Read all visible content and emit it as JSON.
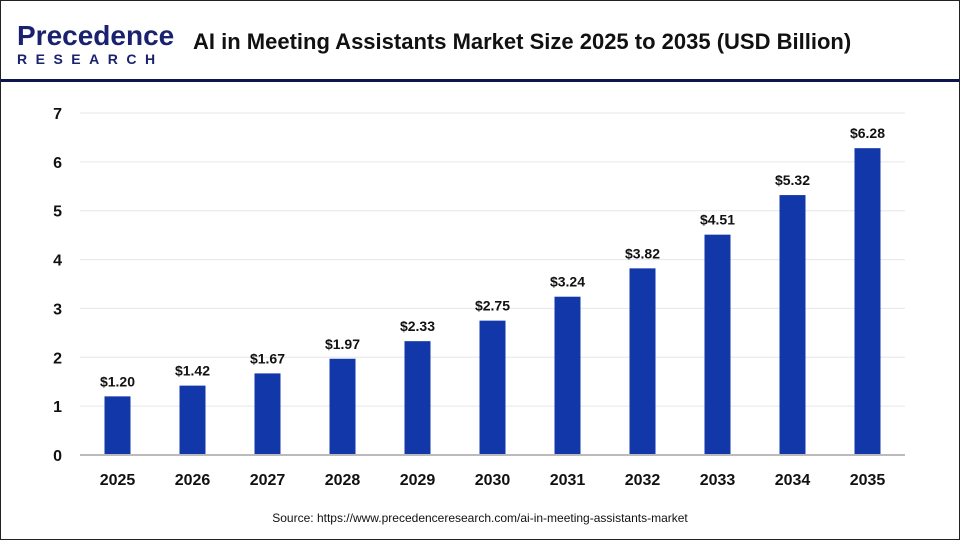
{
  "logo": {
    "line1": "Precedence",
    "line2": "RESEARCH"
  },
  "header": {
    "title": "AI in Meeting Assistants Market Size 2025 to 2035 (USD Billion)"
  },
  "source": "Source: https://www.precedenceresearch.com/ai-in-meeting-assistants-market",
  "chart_data": {
    "type": "bar",
    "title": "AI in Meeting Assistants Market Size 2025 to 2035 (USD Billion)",
    "categories": [
      "2025",
      "2026",
      "2027",
      "2028",
      "2029",
      "2030",
      "2031",
      "2032",
      "2033",
      "2034",
      "2035"
    ],
    "values": [
      1.2,
      1.42,
      1.67,
      1.97,
      2.33,
      2.75,
      3.24,
      3.82,
      4.51,
      5.32,
      6.28
    ],
    "data_labels": [
      "$1.20",
      "$1.42",
      "$1.67",
      "$1.97",
      "$2.33",
      "$2.75",
      "$3.24",
      "$3.82",
      "$4.51",
      "$5.32",
      "$6.28"
    ],
    "yticks": [
      "0",
      "1",
      "2",
      "3",
      "4",
      "5",
      "6",
      "7"
    ],
    "ylim": [
      0,
      7
    ],
    "grid": true,
    "bar_color": "#1237a8",
    "xlabel": "",
    "ylabel": ""
  }
}
